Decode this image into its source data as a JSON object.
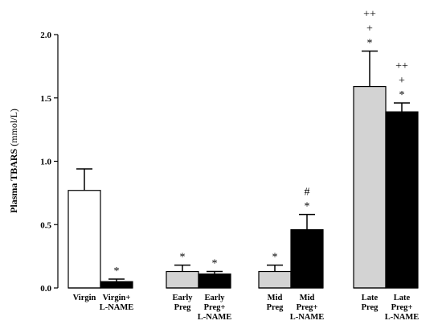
{
  "chart_data": {
    "type": "bar",
    "title": "",
    "ylabel": {
      "bold": "Plasma TBARS",
      "normal": " (mmol/L)"
    },
    "ylim": [
      0,
      2.0
    ],
    "yticks": [
      "0.0",
      "0.5",
      "1.0",
      "1.5",
      "2.0"
    ],
    "bars": [
      {
        "label": [
          "Virgin"
        ],
        "value": 0.77,
        "error": 0.17,
        "fill": "#ffffff",
        "group": 0,
        "annot": []
      },
      {
        "label": [
          "Virgin+",
          "L-NAME"
        ],
        "value": 0.05,
        "error": 0.02,
        "fill": "#000000",
        "group": 0,
        "annot": [
          "*"
        ]
      },
      {
        "label": [
          "Early",
          "Preg"
        ],
        "value": 0.13,
        "error": 0.05,
        "fill": "#d3d3d3",
        "group": 1,
        "annot": [
          "*"
        ]
      },
      {
        "label": [
          "Early",
          "Preg+",
          "L-NAME"
        ],
        "value": 0.11,
        "error": 0.02,
        "fill": "#000000",
        "group": 1,
        "annot": [
          "*"
        ]
      },
      {
        "label": [
          "Mid",
          "Preg"
        ],
        "value": 0.13,
        "error": 0.05,
        "fill": "#d3d3d3",
        "group": 2,
        "annot": [
          "*"
        ]
      },
      {
        "label": [
          "Mid",
          "Preg+",
          "L-NAME"
        ],
        "value": 0.46,
        "error": 0.12,
        "fill": "#000000",
        "group": 2,
        "annot": [
          "*",
          "#"
        ]
      },
      {
        "label": [
          "Late",
          "Preg"
        ],
        "value": 1.59,
        "error": 0.28,
        "fill": "#d3d3d3",
        "group": 3,
        "annot": [
          "*",
          "+",
          "++"
        ]
      },
      {
        "label": [
          "Late",
          "Preg+",
          "L-NAME"
        ],
        "value": 1.39,
        "error": 0.07,
        "fill": "#000000",
        "group": 3,
        "annot": [
          "*",
          "+",
          "++"
        ]
      }
    ]
  }
}
